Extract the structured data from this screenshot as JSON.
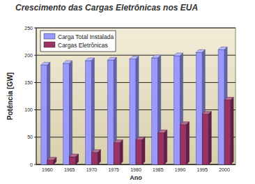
{
  "chart_data": {
    "type": "bar",
    "title": "Crescimento das Cargas Eletrônicas nos EUA",
    "x_label": "Ano",
    "y_label": "Potência [GW]",
    "categories": [
      "1960",
      "1965",
      "1970",
      "1975",
      "1980",
      "1985",
      "1990",
      "1995",
      "2000"
    ],
    "series": [
      {
        "name": "Carga Total Instalada",
        "color": "#9999ff",
        "values": [
          182,
          185,
          190,
          191,
          193,
          195,
          199,
          205,
          210
        ]
      },
      {
        "name": "Cargas Eletrônicas",
        "color": "#993366",
        "values": [
          8,
          14,
          22,
          40,
          45,
          58,
          73,
          92,
          118
        ]
      }
    ],
    "ylim": [
      0,
      250
    ],
    "yticks": [
      0,
      50,
      100,
      150,
      200,
      250
    ],
    "grid": true,
    "legend": "upper left"
  }
}
